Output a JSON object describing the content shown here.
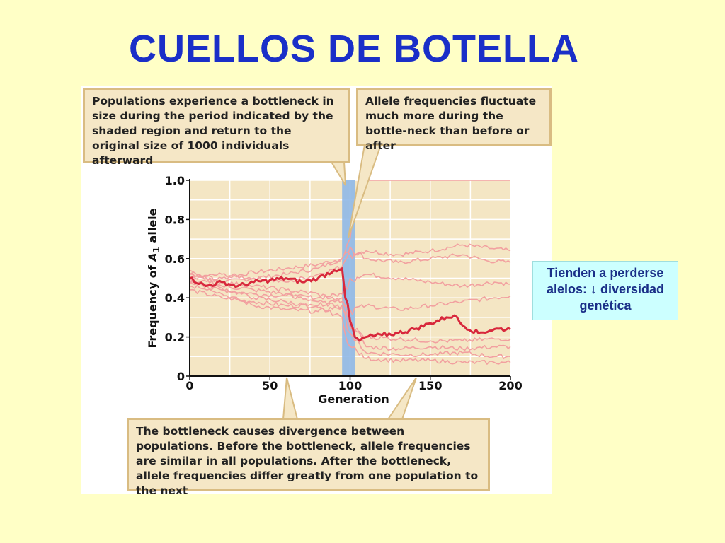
{
  "slide": {
    "title": "CUELLOS DE BOTELLA",
    "side_note": "Tienden a perderse alelos: ↓ diversidad genética"
  },
  "callouts": {
    "top_left": "Populations experience a bottleneck in size during the period indicated by the shaded region and return to the original size of 1000 individuals afterward",
    "top_right": "Allele frequencies fluctuate much more during the bottle-neck than before or after",
    "bottom": "The bottleneck causes divergence between populations. Before the bottleneck, allele frequencies are similar in all populations. After the bottleneck, allele frequencies differ greatly from one population to the next"
  },
  "colors": {
    "plot_bg": "#f4e6c4",
    "grid": "#ffffff",
    "bottleneck": "#8fb8e8",
    "series_light": "#f2a0a0",
    "series_highlight": "#d8283c",
    "axis": "#111111"
  },
  "chart_data": {
    "type": "line",
    "title": "",
    "xlabel": "Generation",
    "ylabel": "Frequency of A1 allele",
    "xlim": [
      0,
      200
    ],
    "ylim": [
      0,
      1.0
    ],
    "x_ticks": [
      "0",
      "50",
      "100",
      "150",
      "200"
    ],
    "x_tick_values": [
      0,
      50,
      100,
      150,
      200
    ],
    "y_ticks": [
      "0",
      "0.2",
      "0.4",
      "0.6",
      "0.8",
      "1.0"
    ],
    "y_tick_values": [
      0,
      0.2,
      0.4,
      0.6,
      0.8,
      1.0
    ],
    "grid": true,
    "shaded_region": [
      95,
      103
    ],
    "series": [
      {
        "highlight": true,
        "points": [
          [
            0,
            0.5
          ],
          [
            10,
            0.46
          ],
          [
            20,
            0.48
          ],
          [
            30,
            0.46
          ],
          [
            40,
            0.48
          ],
          [
            50,
            0.49
          ],
          [
            60,
            0.5
          ],
          [
            70,
            0.48
          ],
          [
            80,
            0.5
          ],
          [
            90,
            0.54
          ],
          [
            95,
            0.55
          ],
          [
            97,
            0.4
          ],
          [
            100,
            0.28
          ],
          [
            103,
            0.2
          ],
          [
            106,
            0.18
          ],
          [
            110,
            0.2
          ],
          [
            120,
            0.21
          ],
          [
            130,
            0.22
          ],
          [
            140,
            0.24
          ],
          [
            150,
            0.27
          ],
          [
            160,
            0.3
          ],
          [
            165,
            0.31
          ],
          [
            170,
            0.26
          ],
          [
            180,
            0.22
          ],
          [
            190,
            0.24
          ],
          [
            200,
            0.24
          ]
        ]
      },
      {
        "highlight": false,
        "points": [
          [
            0,
            0.48
          ],
          [
            20,
            0.5
          ],
          [
            40,
            0.53
          ],
          [
            60,
            0.55
          ],
          [
            80,
            0.57
          ],
          [
            95,
            0.6
          ],
          [
            100,
            0.7
          ],
          [
            103,
            0.88
          ],
          [
            105,
            1.0
          ],
          [
            200,
            1.0
          ]
        ]
      },
      {
        "highlight": false,
        "points": [
          [
            0,
            0.52
          ],
          [
            20,
            0.48
          ],
          [
            40,
            0.5
          ],
          [
            60,
            0.52
          ],
          [
            80,
            0.55
          ],
          [
            95,
            0.6
          ],
          [
            100,
            0.62
          ],
          [
            110,
            0.64
          ],
          [
            130,
            0.62
          ],
          [
            150,
            0.64
          ],
          [
            170,
            0.67
          ],
          [
            190,
            0.65
          ],
          [
            200,
            0.64
          ]
        ]
      },
      {
        "highlight": false,
        "points": [
          [
            0,
            0.5
          ],
          [
            20,
            0.52
          ],
          [
            40,
            0.5
          ],
          [
            60,
            0.48
          ],
          [
            80,
            0.52
          ],
          [
            95,
            0.56
          ],
          [
            100,
            0.66
          ],
          [
            110,
            0.6
          ],
          [
            130,
            0.58
          ],
          [
            150,
            0.6
          ],
          [
            170,
            0.62
          ],
          [
            185,
            0.59
          ],
          [
            200,
            0.58
          ]
        ]
      },
      {
        "highlight": false,
        "points": [
          [
            0,
            0.46
          ],
          [
            20,
            0.44
          ],
          [
            40,
            0.42
          ],
          [
            60,
            0.41
          ],
          [
            80,
            0.4
          ],
          [
            95,
            0.42
          ],
          [
            100,
            0.5
          ],
          [
            110,
            0.52
          ],
          [
            130,
            0.5
          ],
          [
            150,
            0.48
          ],
          [
            170,
            0.46
          ],
          [
            190,
            0.48
          ],
          [
            200,
            0.47
          ]
        ]
      },
      {
        "highlight": false,
        "points": [
          [
            0,
            0.44
          ],
          [
            20,
            0.4
          ],
          [
            40,
            0.38
          ],
          [
            60,
            0.36
          ],
          [
            80,
            0.36
          ],
          [
            95,
            0.4
          ],
          [
            100,
            0.34
          ],
          [
            110,
            0.36
          ],
          [
            130,
            0.34
          ],
          [
            150,
            0.36
          ],
          [
            170,
            0.38
          ],
          [
            190,
            0.4
          ],
          [
            200,
            0.41
          ]
        ]
      },
      {
        "highlight": false,
        "points": [
          [
            0,
            0.5
          ],
          [
            20,
            0.42
          ],
          [
            40,
            0.36
          ],
          [
            60,
            0.34
          ],
          [
            80,
            0.33
          ],
          [
            95,
            0.36
          ],
          [
            100,
            0.3
          ],
          [
            110,
            0.15
          ],
          [
            130,
            0.14
          ],
          [
            150,
            0.15
          ],
          [
            170,
            0.14
          ],
          [
            190,
            0.15
          ],
          [
            200,
            0.15
          ]
        ]
      },
      {
        "highlight": false,
        "points": [
          [
            0,
            0.52
          ],
          [
            20,
            0.46
          ],
          [
            40,
            0.44
          ],
          [
            60,
            0.42
          ],
          [
            80,
            0.38
          ],
          [
            95,
            0.35
          ],
          [
            100,
            0.22
          ],
          [
            110,
            0.12
          ],
          [
            130,
            0.11
          ],
          [
            150,
            0.11
          ],
          [
            170,
            0.12
          ],
          [
            190,
            0.1
          ],
          [
            200,
            0.1
          ]
        ]
      },
      {
        "highlight": false,
        "points": [
          [
            0,
            0.48
          ],
          [
            20,
            0.45
          ],
          [
            40,
            0.4
          ],
          [
            60,
            0.38
          ],
          [
            80,
            0.35
          ],
          [
            95,
            0.3
          ],
          [
            100,
            0.15
          ],
          [
            110,
            0.09
          ],
          [
            130,
            0.08
          ],
          [
            150,
            0.08
          ],
          [
            170,
            0.07
          ],
          [
            190,
            0.07
          ],
          [
            200,
            0.07
          ]
        ]
      },
      {
        "highlight": false,
        "points": [
          [
            0,
            0.54
          ],
          [
            20,
            0.48
          ],
          [
            40,
            0.46
          ],
          [
            60,
            0.44
          ],
          [
            80,
            0.42
          ],
          [
            95,
            0.38
          ],
          [
            100,
            0.25
          ],
          [
            110,
            0.2
          ],
          [
            130,
            0.19
          ],
          [
            150,
            0.18
          ],
          [
            170,
            0.18
          ],
          [
            190,
            0.19
          ],
          [
            200,
            0.19
          ]
        ]
      }
    ]
  }
}
